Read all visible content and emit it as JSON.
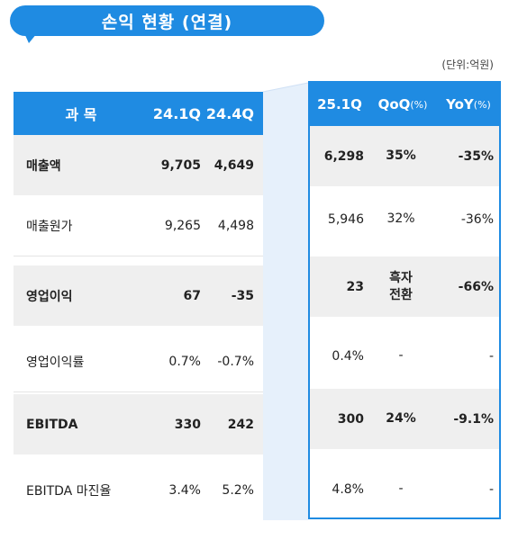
{
  "title": "손익 현황 (연결)",
  "unit": "(단위:억원)",
  "colors": {
    "accent": "#1f8be2",
    "shade": "#efefef"
  },
  "left_table": {
    "headers": {
      "subject": "과 목",
      "q1": "24.1Q",
      "q4": "24.4Q"
    },
    "rows": [
      {
        "subject": "매출액",
        "q1": "9,705",
        "q4": "4,649"
      },
      {
        "subject": "매출원가",
        "q1": "9,265",
        "q4": "4,498"
      },
      {
        "subject": "영업이익",
        "q1": "67",
        "q4": "-35"
      },
      {
        "subject": "영업이익률",
        "q1": "0.7%",
        "q4": "-0.7%"
      },
      {
        "subject": "EBITDA",
        "q1": "330",
        "q4": "242"
      },
      {
        "subject": "EBITDA 마진율",
        "q1": "3.4%",
        "q4": "5.2%"
      }
    ]
  },
  "right_table": {
    "headers": {
      "val": "25.1Q",
      "qoq": "QoQ",
      "qoq_unit": "(%)",
      "yoy": "YoY",
      "yoy_unit": "(%)"
    },
    "rows": [
      {
        "val": "6,298",
        "qoq": "35%",
        "yoy": "-35%"
      },
      {
        "val": "5,946",
        "qoq": "32%",
        "yoy": "-36%"
      },
      {
        "val": "23",
        "qoq_line1": "흑자",
        "qoq_line2": "전환",
        "yoy": "-66%"
      },
      {
        "val": "0.4%",
        "qoq": "-",
        "yoy": "-"
      },
      {
        "val": "300",
        "qoq": "24%",
        "yoy": "-9.1%"
      },
      {
        "val": "4.8%",
        "qoq": "-",
        "yoy": "-"
      }
    ]
  }
}
